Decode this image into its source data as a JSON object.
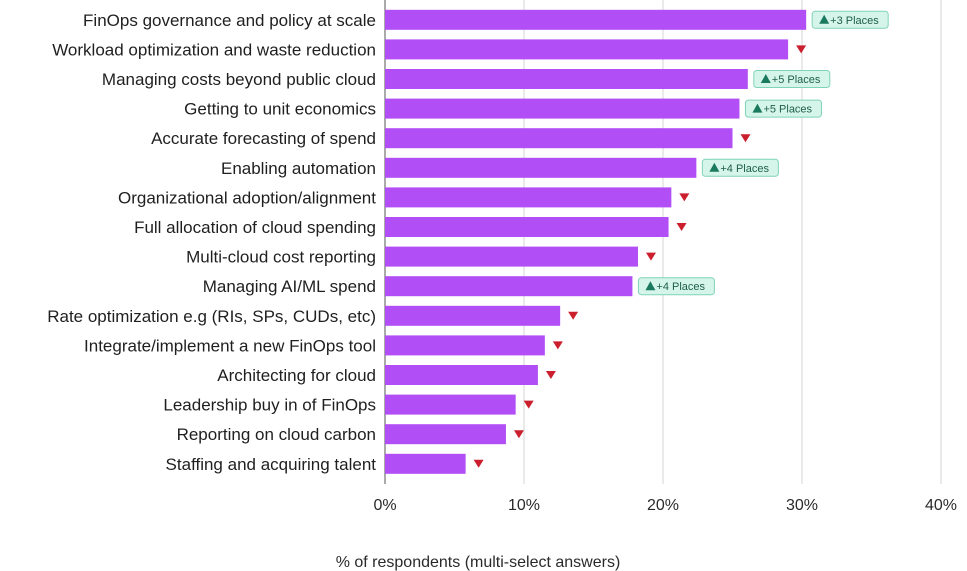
{
  "chart_data": {
    "type": "bar",
    "orientation": "horizontal",
    "xlabel": "% of respondents (multi-select answers)",
    "xlim": [
      0,
      40
    ],
    "xticks": [
      0,
      10,
      20,
      30,
      40
    ],
    "xtick_labels": [
      "0%",
      "10%",
      "20%",
      "30%",
      "40%"
    ],
    "bar_color": "#b14ef5",
    "up_color": "#1a7a5e",
    "down_color": "#cc1f2e",
    "badge_bg": "#d6f5ea",
    "categories": [
      "FinOps governance and policy at scale",
      "Workload optimization and waste reduction",
      "Managing costs beyond public cloud",
      "Getting to unit economics",
      "Accurate forecasting of spend",
      "Enabling automation",
      "Organizational adoption/alignment",
      "Full allocation of cloud spending",
      "Multi-cloud cost reporting",
      "Managing AI/ML spend",
      "Rate optimization e.g (RIs, SPs, CUDs, etc)",
      "Integrate/implement a new FinOps tool",
      "Architecting for cloud",
      "Leadership buy in of FinOps",
      "Reporting on cloud carbon",
      "Staffing and acquiring talent"
    ],
    "values": [
      30.3,
      29.0,
      26.1,
      25.5,
      25.0,
      22.4,
      20.6,
      20.4,
      18.2,
      17.8,
      12.6,
      11.5,
      11.0,
      9.4,
      8.7,
      5.8
    ],
    "rank_change": [
      {
        "direction": "up",
        "label": "+3 Places"
      },
      {
        "direction": "down",
        "label": ""
      },
      {
        "direction": "up",
        "label": "+5 Places"
      },
      {
        "direction": "up",
        "label": "+5 Places"
      },
      {
        "direction": "down",
        "label": ""
      },
      {
        "direction": "up",
        "label": "+4 Places"
      },
      {
        "direction": "down",
        "label": ""
      },
      {
        "direction": "down",
        "label": ""
      },
      {
        "direction": "down",
        "label": ""
      },
      {
        "direction": "up",
        "label": "+4 Places"
      },
      {
        "direction": "down",
        "label": ""
      },
      {
        "direction": "down",
        "label": ""
      },
      {
        "direction": "down",
        "label": ""
      },
      {
        "direction": "down",
        "label": ""
      },
      {
        "direction": "down",
        "label": ""
      },
      {
        "direction": "down",
        "label": ""
      }
    ]
  }
}
